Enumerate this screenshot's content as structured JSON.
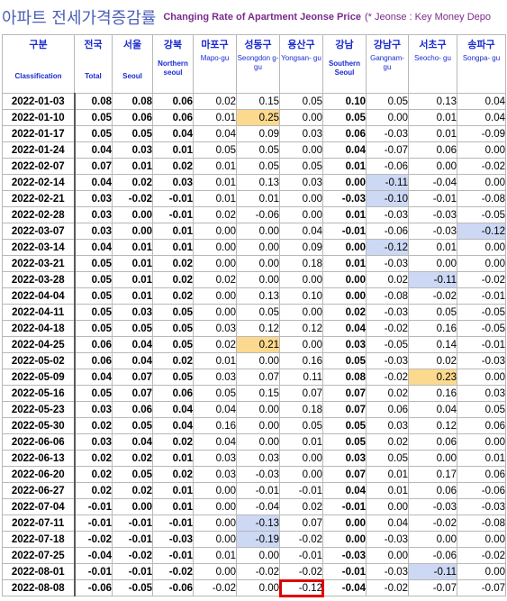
{
  "title": {
    "korean": "아파트 전세가격증감률",
    "english": "Changing Rate of Apartment Jeonse Price",
    "note": "(* Jeonse : Key Money Depo"
  },
  "columns": [
    {
      "ko": "구분",
      "en": "Classification"
    },
    {
      "ko": "전국",
      "en": "Total"
    },
    {
      "ko": "서울",
      "en": "Seoul"
    },
    {
      "ko": "강북",
      "en": "Northern seoul"
    },
    {
      "ko": "마포구",
      "en": "Mapo-gu"
    },
    {
      "ko": "성동구",
      "en": "Seongdon g-gu"
    },
    {
      "ko": "용산구",
      "en": "Yongsan- gu"
    },
    {
      "ko": "강남",
      "en": "Southern Seoul"
    },
    {
      "ko": "강남구",
      "en": "Gangnam- gu"
    },
    {
      "ko": "서초구",
      "en": "Seocho- gu"
    },
    {
      "ko": "송파구",
      "en": "Songpa- gu"
    }
  ],
  "rows": [
    [
      "2022-01-03",
      "0.08",
      "0.08",
      "0.06",
      "0.02",
      "0.15",
      "0.05",
      "0.10",
      "0.05",
      "0.13",
      "0.04"
    ],
    [
      "2022-01-10",
      "0.05",
      "0.06",
      "0.06",
      "0.01",
      "0.25",
      "0.00",
      "0.05",
      "0.00",
      "0.01",
      "0.04"
    ],
    [
      "2022-01-17",
      "0.05",
      "0.05",
      "0.04",
      "0.04",
      "0.09",
      "0.03",
      "0.06",
      "-0.03",
      "0.01",
      "-0.09"
    ],
    [
      "2022-01-24",
      "0.04",
      "0.03",
      "0.01",
      "0.05",
      "0.05",
      "0.00",
      "0.04",
      "-0.07",
      "0.06",
      "0.00"
    ],
    [
      "2022-02-07",
      "0.07",
      "0.01",
      "0.02",
      "0.01",
      "0.05",
      "0.05",
      "0.01",
      "-0.06",
      "0.00",
      "-0.02"
    ],
    [
      "2022-02-14",
      "0.04",
      "0.02",
      "0.03",
      "0.01",
      "0.13",
      "0.03",
      "0.00",
      "-0.11",
      "-0.04",
      "0.00"
    ],
    [
      "2022-02-21",
      "0.03",
      "-0.02",
      "-0.01",
      "0.01",
      "0.01",
      "0.00",
      "-0.03",
      "-0.10",
      "-0.01",
      "-0.08"
    ],
    [
      "2022-02-28",
      "0.03",
      "0.00",
      "-0.01",
      "0.02",
      "-0.06",
      "0.00",
      "0.01",
      "-0.03",
      "-0.03",
      "-0.05"
    ],
    [
      "2022-03-07",
      "0.03",
      "0.00",
      "0.01",
      "0.00",
      "0.00",
      "0.04",
      "-0.01",
      "-0.06",
      "-0.03",
      "-0.12"
    ],
    [
      "2022-03-14",
      "0.04",
      "0.01",
      "0.01",
      "0.00",
      "0.00",
      "0.09",
      "0.00",
      "-0.12",
      "0.01",
      "0.00"
    ],
    [
      "2022-03-21",
      "0.05",
      "0.01",
      "0.02",
      "0.00",
      "0.00",
      "0.18",
      "0.01",
      "-0.03",
      "0.00",
      "0.00"
    ],
    [
      "2022-03-28",
      "0.05",
      "0.01",
      "0.02",
      "0.02",
      "0.00",
      "0.00",
      "0.00",
      "0.02",
      "-0.11",
      "-0.02"
    ],
    [
      "2022-04-04",
      "0.05",
      "0.01",
      "0.02",
      "0.00",
      "0.13",
      "0.10",
      "0.00",
      "-0.08",
      "-0.02",
      "-0.01"
    ],
    [
      "2022-04-11",
      "0.05",
      "0.03",
      "0.05",
      "0.00",
      "0.05",
      "0.00",
      "0.02",
      "-0.03",
      "0.05",
      "-0.05"
    ],
    [
      "2022-04-18",
      "0.05",
      "0.05",
      "0.05",
      "0.03",
      "0.12",
      "0.12",
      "0.04",
      "-0.02",
      "0.16",
      "-0.05"
    ],
    [
      "2022-04-25",
      "0.06",
      "0.04",
      "0.05",
      "0.02",
      "0.21",
      "0.00",
      "0.03",
      "-0.05",
      "0.14",
      "-0.01"
    ],
    [
      "2022-05-02",
      "0.06",
      "0.04",
      "0.02",
      "0.01",
      "0.00",
      "0.16",
      "0.05",
      "-0.03",
      "0.02",
      "-0.03"
    ],
    [
      "2022-05-09",
      "0.04",
      "0.07",
      "0.05",
      "0.03",
      "0.07",
      "0.11",
      "0.08",
      "-0.02",
      "0.23",
      "0.00"
    ],
    [
      "2022-05-16",
      "0.05",
      "0.07",
      "0.06",
      "0.05",
      "0.15",
      "0.07",
      "0.07",
      "0.02",
      "0.16",
      "0.03"
    ],
    [
      "2022-05-23",
      "0.03",
      "0.06",
      "0.04",
      "0.04",
      "0.00",
      "0.18",
      "0.07",
      "0.06",
      "0.04",
      "0.05"
    ],
    [
      "2022-05-30",
      "0.02",
      "0.05",
      "0.04",
      "0.16",
      "0.00",
      "0.05",
      "0.05",
      "0.03",
      "0.12",
      "0.06"
    ],
    [
      "2022-06-06",
      "0.03",
      "0.04",
      "0.02",
      "0.04",
      "0.00",
      "0.01",
      "0.05",
      "0.02",
      "0.06",
      "0.00"
    ],
    [
      "2022-06-13",
      "0.02",
      "0.02",
      "0.01",
      "0.03",
      "0.03",
      "0.00",
      "0.03",
      "0.05",
      "0.00",
      "0.01"
    ],
    [
      "2022-06-20",
      "0.02",
      "0.05",
      "0.02",
      "0.03",
      "-0.03",
      "0.00",
      "0.07",
      "0.01",
      "0.17",
      "0.06"
    ],
    [
      "2022-06-27",
      "0.02",
      "0.02",
      "0.01",
      "0.00",
      "-0.01",
      "-0.01",
      "0.04",
      "0.01",
      "0.06",
      "-0.06"
    ],
    [
      "2022-07-04",
      "-0.01",
      "0.00",
      "0.01",
      "0.00",
      "-0.04",
      "0.02",
      "-0.01",
      "0.00",
      "-0.03",
      "-0.03"
    ],
    [
      "2022-07-11",
      "-0.01",
      "-0.01",
      "-0.01",
      "0.00",
      "-0.13",
      "0.07",
      "0.00",
      "0.04",
      "-0.02",
      "-0.08"
    ],
    [
      "2022-07-18",
      "-0.02",
      "-0.01",
      "-0.03",
      "0.00",
      "-0.19",
      "-0.02",
      "0.00",
      "-0.03",
      "0.00",
      "0.00"
    ],
    [
      "2022-07-25",
      "-0.04",
      "-0.02",
      "-0.01",
      "0.01",
      "0.00",
      "-0.01",
      "-0.03",
      "0.00",
      "-0.06",
      "-0.02"
    ],
    [
      "2022-08-01",
      "-0.01",
      "-0.01",
      "-0.02",
      "0.00",
      "-0.02",
      "-0.02",
      "-0.01",
      "-0.03",
      "-0.11",
      "0.00"
    ],
    [
      "2022-08-08",
      "-0.06",
      "-0.05",
      "-0.06",
      "-0.02",
      "0.00",
      "-0.12",
      "-0.04",
      "-0.02",
      "-0.07",
      "-0.07"
    ]
  ],
  "highlights": {
    "orange": [
      [
        1,
        5
      ],
      [
        15,
        5
      ],
      [
        17,
        9
      ]
    ],
    "blue": [
      [
        5,
        8
      ],
      [
        6,
        8
      ],
      [
        8,
        10
      ],
      [
        9,
        8
      ],
      [
        11,
        9
      ],
      [
        26,
        5
      ],
      [
        27,
        5
      ],
      [
        29,
        9
      ]
    ],
    "red_box": [
      [
        30,
        6
      ]
    ]
  },
  "colors": {
    "title_korean": "#4b5fb8",
    "title_english": "#7a2a8c",
    "header_text": "#1a2bd0",
    "highlight_orange": "#fbd98e",
    "highlight_blue": "#ccd8f4",
    "highlight_red_box": "#e00000"
  }
}
